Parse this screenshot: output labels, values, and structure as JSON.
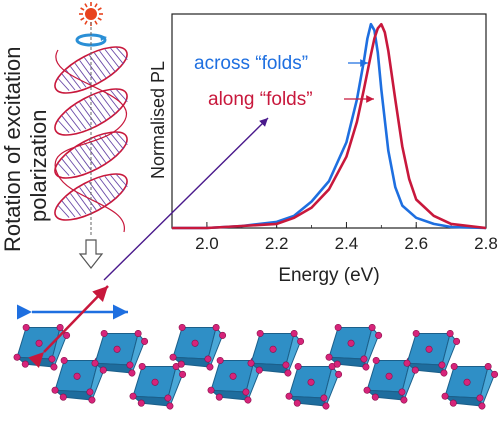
{
  "side_label": {
    "line1": "Rotation of excitation",
    "line2": "polarization"
  },
  "chart_data": {
    "type": "line",
    "xlabel": "Energy (eV)",
    "ylabel": "Normalised PL",
    "xlim": [
      1.9,
      2.8
    ],
    "ylim": [
      0,
      1.05
    ],
    "xticks": [
      "2.0",
      "2.2",
      "2.4",
      "2.6",
      "2.8"
    ],
    "grid": false,
    "series": [
      {
        "name": "across “folds”",
        "color": "#1e6fe0",
        "points": [
          [
            1.9,
            0.0
          ],
          [
            2.0,
            0.0
          ],
          [
            2.1,
            0.01
          ],
          [
            2.2,
            0.03
          ],
          [
            2.25,
            0.06
          ],
          [
            2.3,
            0.13
          ],
          [
            2.35,
            0.23
          ],
          [
            2.4,
            0.42
          ],
          [
            2.43,
            0.63
          ],
          [
            2.45,
            0.82
          ],
          [
            2.46,
            0.93
          ],
          [
            2.47,
            1.0
          ],
          [
            2.48,
            0.97
          ],
          [
            2.49,
            0.86
          ],
          [
            2.5,
            0.68
          ],
          [
            2.52,
            0.38
          ],
          [
            2.54,
            0.2
          ],
          [
            2.56,
            0.11
          ],
          [
            2.6,
            0.05
          ],
          [
            2.65,
            0.02
          ],
          [
            2.7,
            0.005
          ],
          [
            2.8,
            0.0
          ]
        ]
      },
      {
        "name": "along “folds”",
        "color": "#c8183c",
        "points": [
          [
            1.9,
            0.0
          ],
          [
            2.0,
            0.0
          ],
          [
            2.1,
            0.01
          ],
          [
            2.2,
            0.02
          ],
          [
            2.25,
            0.05
          ],
          [
            2.3,
            0.1
          ],
          [
            2.35,
            0.19
          ],
          [
            2.4,
            0.35
          ],
          [
            2.43,
            0.52
          ],
          [
            2.45,
            0.68
          ],
          [
            2.47,
            0.85
          ],
          [
            2.48,
            0.93
          ],
          [
            2.49,
            0.98
          ],
          [
            2.5,
            1.0
          ],
          [
            2.51,
            0.96
          ],
          [
            2.52,
            0.87
          ],
          [
            2.54,
            0.63
          ],
          [
            2.56,
            0.4
          ],
          [
            2.58,
            0.24
          ],
          [
            2.6,
            0.14
          ],
          [
            2.65,
            0.06
          ],
          [
            2.7,
            0.02
          ],
          [
            2.8,
            0.0
          ]
        ]
      }
    ]
  }
}
